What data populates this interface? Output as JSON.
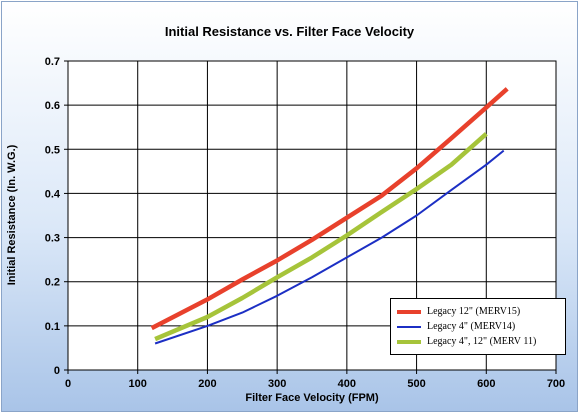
{
  "chart_data": {
    "type": "line",
    "title": "Initial Resistance vs. Filter Face Velocity",
    "xlabel": "Filter Face Velocity (FPM)",
    "ylabel": "Initial Resistance (In. W.G.)",
    "xlim": [
      0,
      700
    ],
    "ylim": [
      0,
      0.7
    ],
    "xticks": [
      0,
      100,
      200,
      300,
      400,
      500,
      600,
      700
    ],
    "yticks": [
      0,
      0.1,
      0.2,
      0.3,
      0.4,
      0.5,
      0.6,
      0.7
    ],
    "xtick_labels": [
      "0",
      "100",
      "200",
      "300",
      "400",
      "500",
      "600",
      "700"
    ],
    "ytick_labels": [
      "0",
      "0.1",
      "0.2",
      "0.3",
      "0.4",
      "0.5",
      "0.6",
      "0.7"
    ],
    "grid": true,
    "legend": "bottom-right",
    "series": [
      {
        "name": "Legacy 12\"  (MERV15)",
        "color": "#e8412c",
        "width": "thick",
        "x": [
          120,
          200,
          250,
          300,
          350,
          400,
          450,
          500,
          550,
          600,
          630
        ],
        "y": [
          0.095,
          0.16,
          0.205,
          0.248,
          0.295,
          0.345,
          0.395,
          0.457,
          0.525,
          0.595,
          0.637
        ]
      },
      {
        "name": "Legacy 4\" (MERV14)",
        "color": "#1c2fc4",
        "width": "thin",
        "x": [
          125,
          200,
          250,
          300,
          350,
          400,
          450,
          500,
          550,
          600,
          625
        ],
        "y": [
          0.06,
          0.1,
          0.13,
          0.168,
          0.21,
          0.255,
          0.3,
          0.35,
          0.408,
          0.465,
          0.497
        ]
      },
      {
        "name": "Legacy 4\", 12\" (MERV 11)",
        "color": "#a6c43a",
        "width": "thick",
        "x": [
          125,
          200,
          250,
          300,
          350,
          400,
          450,
          500,
          550,
          600
        ],
        "y": [
          0.07,
          0.12,
          0.163,
          0.21,
          0.255,
          0.305,
          0.358,
          0.41,
          0.465,
          0.535
        ]
      }
    ]
  }
}
